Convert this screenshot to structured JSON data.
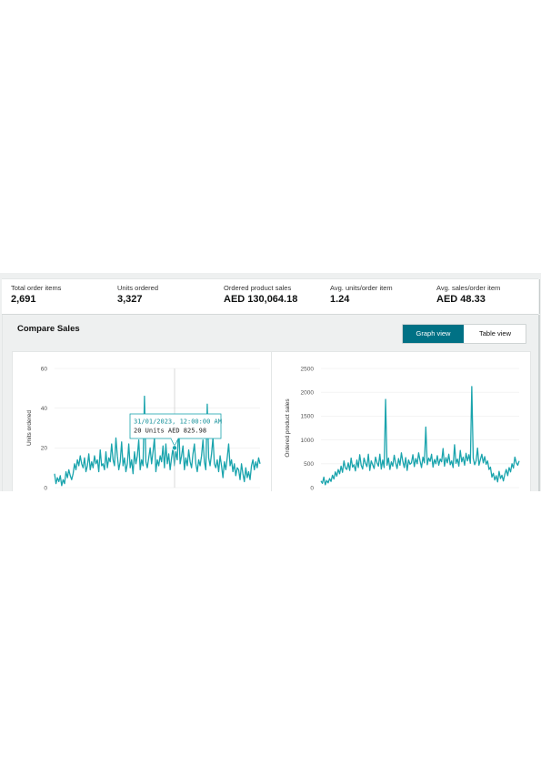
{
  "metrics": [
    {
      "label": "Total order items",
      "value": "2,691"
    },
    {
      "label": "Units ordered",
      "value": "3,327"
    },
    {
      "label": "Ordered product sales",
      "value": "AED 130,064.18"
    },
    {
      "label": "Avg. units/order item",
      "value": "1.24"
    },
    {
      "label": "Avg. sales/order item",
      "value": "AED 48.33"
    }
  ],
  "compare": {
    "title": "Compare Sales",
    "graph_view_label": "Graph view",
    "table_view_label": "Table view",
    "active_view": "graph"
  },
  "colors": {
    "accent": "#007185",
    "line": "#1aa4ad",
    "tooltip_text": "#14909a"
  },
  "tooltip": {
    "date": "31/01/2023, 12:00:00 AM",
    "detail": "20 Units AED 825.98"
  },
  "chart_data": [
    {
      "type": "line",
      "ylabel": "Units ordered",
      "ylim": [
        0,
        60
      ],
      "yticks": [
        0,
        20,
        40,
        60
      ],
      "grid": true,
      "series": [
        {
          "values": [
            7,
            2,
            5,
            3,
            6,
            1,
            4,
            2,
            8,
            5,
            9,
            6,
            4,
            7,
            12,
            9,
            14,
            11,
            16,
            12,
            10,
            15,
            8,
            11,
            17,
            9,
            13,
            10,
            16,
            12,
            14,
            8,
            19,
            11,
            12,
            9,
            18,
            10,
            15,
            13,
            22,
            14,
            11,
            25,
            16,
            9,
            13,
            23,
            11,
            15,
            8,
            12,
            22,
            10,
            14,
            7,
            18,
            12,
            16,
            24,
            9,
            14,
            11,
            46,
            13,
            10,
            15,
            20,
            12,
            18,
            25,
            8,
            14,
            11,
            16,
            13,
            21,
            10,
            22,
            12,
            17,
            9,
            15,
            20,
            11,
            18,
            14,
            31,
            12,
            16,
            21,
            9,
            15,
            11,
            19,
            13,
            10,
            17,
            22,
            12,
            8,
            14,
            11,
            16,
            24,
            13,
            9,
            42,
            15,
            11,
            17,
            25,
            12,
            10,
            14,
            8,
            16,
            11,
            5,
            13,
            9,
            15,
            22,
            11,
            14,
            8,
            12,
            6,
            10,
            9,
            4,
            12,
            7,
            3,
            10,
            5,
            8,
            4,
            11,
            14,
            9,
            13,
            10,
            15,
            12
          ]
        }
      ]
    },
    {
      "type": "line",
      "ylabel": "Ordered product sales",
      "ylim": [
        0,
        2500
      ],
      "yticks": [
        0,
        500,
        1000,
        1500,
        2000,
        2500
      ],
      "grid": true,
      "series": [
        {
          "values": [
            140,
            90,
            220,
            60,
            150,
            100,
            190,
            130,
            260,
            180,
            330,
            240,
            380,
            290,
            450,
            320,
            560,
            410,
            380,
            520,
            360,
            620,
            430,
            480,
            350,
            580,
            420,
            690,
            470,
            390,
            620,
            510,
            440,
            700,
            360,
            560,
            480,
            400,
            640,
            520,
            450,
            700,
            390,
            580,
            420,
            1850,
            470,
            620,
            380,
            540,
            450,
            680,
            520,
            400,
            610,
            470,
            730,
            550,
            420,
            630,
            360,
            580,
            490,
            520,
            690,
            440,
            610,
            500,
            730,
            560,
            420,
            640,
            520,
            1270,
            480,
            620,
            550,
            700,
            430,
            590,
            500,
            670,
            470,
            600,
            540,
            820,
            450,
            630,
            520,
            700,
            480,
            560,
            420,
            900,
            510,
            600,
            450,
            780,
            540,
            640,
            470,
            720,
            560,
            690,
            510,
            2120,
            620,
            480,
            560,
            830,
            470,
            590,
            700,
            520,
            650,
            490,
            560,
            380,
            430,
            220,
            300,
            160,
            250,
            120,
            340,
            190,
            260,
            140,
            280,
            380,
            250,
            420,
            330,
            500,
            410,
            640,
            520,
            470,
            560
          ]
        }
      ]
    }
  ]
}
